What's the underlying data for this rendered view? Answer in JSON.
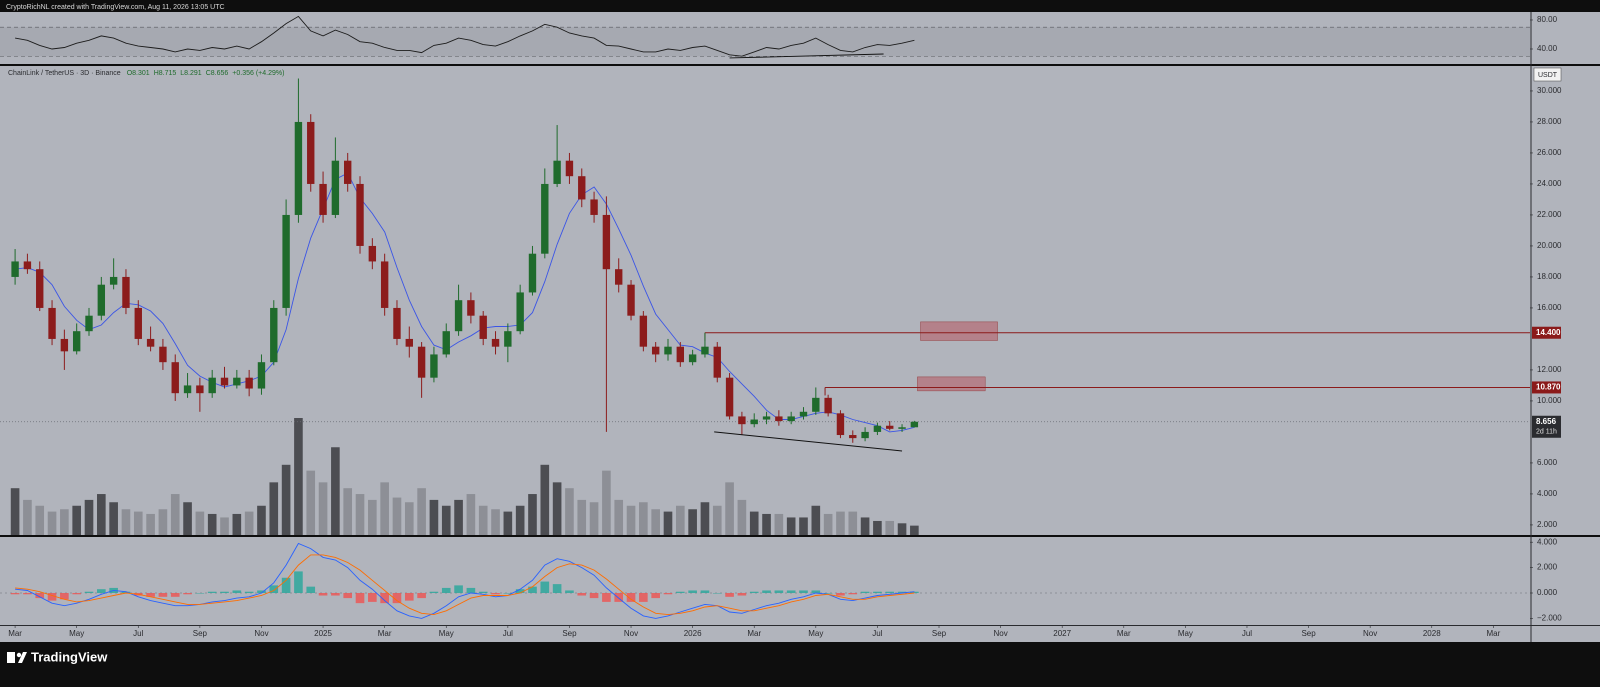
{
  "header": {
    "credit": "CryptoRichNL created with TradingView.com, Aug 11, 2026 13:05 UTC"
  },
  "footer": {
    "brand": "TradingView"
  },
  "chart_data": [
    {
      "type": "line",
      "color": "#1c1c1c",
      "values": [
        55,
        52,
        45,
        40,
        42,
        48,
        52,
        58,
        55,
        48,
        44,
        42,
        40,
        36,
        40,
        38,
        42,
        40,
        44,
        40,
        50,
        62,
        75,
        85,
        65,
        58,
        66,
        60,
        50,
        48,
        42,
        38,
        38,
        35,
        45,
        48,
        55,
        52,
        46,
        44,
        50,
        58,
        65,
        74,
        70,
        62,
        58,
        55,
        45,
        44,
        40,
        36,
        36,
        40,
        38,
        42,
        44,
        38,
        32,
        30,
        36,
        42,
        40,
        45,
        48,
        55,
        46,
        38,
        36,
        42,
        46,
        45,
        48,
        52
      ],
      "ylim": [
        19.3,
        91
      ],
      "yticks": [
        {
          "value": 80,
          "label": "80.00"
        },
        {
          "value": 40,
          "label": "40.00"
        }
      ],
      "band": [
        30,
        70
      ],
      "trendline": {
        "x": [
          23.2,
          28.2
        ],
        "y": [
          27.6,
          33.1
        ]
      }
    },
    {
      "type": "candlestick",
      "title": "ChainLink / TetherUS · 3D · Binance",
      "ohlc_labels": [
        "O8.301",
        "H8.715",
        "L8.291",
        "C8.656"
      ],
      "change_label": "+0.356 (+4.29%)",
      "currency": "USDT",
      "x": [
        0,
        0.4,
        0.8,
        1.2,
        1.6,
        2,
        2.4,
        2.8,
        3.2,
        3.6,
        4,
        4.4,
        4.8,
        5.2,
        5.6,
        6,
        6.4,
        6.8,
        7.2,
        7.6,
        8,
        8.4,
        8.8,
        9.2,
        9.6,
        10,
        10.4,
        10.8,
        11.2,
        11.6,
        12,
        12.4,
        12.8,
        13.2,
        13.6,
        14,
        14.4,
        14.8,
        15.2,
        15.6,
        16,
        16.4,
        16.8,
        17.2,
        17.6,
        18,
        18.4,
        18.8,
        19.2,
        19.6,
        20,
        20.4,
        20.8,
        21.2,
        21.6,
        22,
        22.4,
        22.8,
        23.2,
        23.6,
        24,
        24.4,
        24.8,
        25.2,
        25.6,
        26,
        26.4,
        26.8,
        27.2,
        27.6,
        28,
        28.4,
        28.8,
        29.2
      ],
      "xlim": [
        -0.49,
        49.19
      ],
      "open": [
        18.0,
        19.0,
        18.5,
        16.0,
        14.0,
        13.2,
        14.5,
        15.5,
        17.5,
        18.0,
        16.0,
        14.0,
        13.5,
        12.5,
        10.5,
        11.0,
        10.5,
        11.5,
        11.0,
        11.5,
        10.8,
        12.5,
        16.0,
        22.0,
        28.0,
        24.0,
        22.0,
        25.5,
        24.0,
        20.0,
        19.0,
        16.0,
        14.0,
        13.5,
        11.5,
        13.0,
        14.5,
        16.5,
        15.5,
        14.0,
        13.5,
        14.5,
        17.0,
        19.5,
        24.0,
        25.5,
        24.5,
        23.0,
        22.0,
        18.5,
        17.5,
        15.5,
        13.5,
        13.0,
        13.5,
        12.5,
        13.0,
        13.5,
        11.5,
        9.0,
        8.5,
        8.8,
        9.0,
        8.7,
        9.0,
        9.3,
        10.2,
        9.2,
        7.8,
        7.6,
        8.0,
        8.4,
        8.2,
        8.301
      ],
      "high": [
        19.8,
        19.5,
        19.0,
        16.5,
        14.6,
        15.0,
        16.0,
        18.0,
        19.2,
        18.5,
        16.5,
        14.8,
        14.0,
        13.0,
        11.8,
        11.5,
        12.0,
        12.2,
        12.0,
        12.0,
        13.0,
        16.5,
        23.0,
        30.8,
        28.5,
        24.8,
        27.0,
        26.0,
        24.5,
        20.5,
        19.5,
        16.5,
        14.8,
        13.8,
        13.5,
        15.0,
        17.5,
        17.0,
        15.8,
        14.5,
        15.0,
        17.5,
        20.0,
        25.0,
        27.8,
        26.0,
        25.0,
        23.5,
        23.2,
        19.2,
        17.8,
        15.8,
        13.8,
        14.0,
        13.8,
        13.3,
        14.4,
        13.8,
        11.8,
        9.3,
        9.2,
        9.3,
        9.4,
        9.3,
        9.6,
        10.87,
        10.4,
        9.4,
        8.1,
        8.3,
        8.6,
        8.7,
        8.5,
        8.715
      ],
      "low": [
        17.5,
        18.2,
        15.8,
        13.6,
        12.0,
        13.0,
        14.2,
        15.2,
        17.2,
        15.6,
        13.6,
        13.2,
        12.0,
        10.0,
        10.2,
        9.3,
        10.2,
        10.8,
        10.8,
        10.3,
        10.4,
        12.3,
        15.5,
        21.5,
        23.5,
        21.5,
        21.8,
        23.5,
        19.5,
        18.5,
        15.5,
        13.6,
        12.8,
        10.2,
        11.2,
        12.8,
        14.2,
        15.0,
        13.6,
        13.0,
        12.5,
        14.3,
        16.8,
        19.2,
        23.8,
        24.0,
        22.5,
        21.5,
        8.0,
        17.0,
        15.2,
        13.2,
        12.5,
        12.6,
        12.2,
        12.3,
        12.8,
        11.2,
        8.8,
        7.8,
        8.3,
        8.5,
        8.4,
        8.5,
        8.8,
        9.1,
        9.0,
        7.6,
        7.3,
        7.4,
        7.8,
        8.1,
        8.0,
        8.291
      ],
      "close": [
        19.0,
        18.5,
        16.0,
        14.0,
        13.2,
        14.5,
        15.5,
        17.5,
        18.0,
        16.0,
        14.0,
        13.5,
        12.5,
        10.5,
        11.0,
        10.5,
        11.5,
        11.0,
        11.5,
        10.8,
        12.5,
        16.0,
        22.0,
        28.0,
        24.0,
        22.0,
        25.5,
        24.0,
        20.0,
        19.0,
        16.0,
        14.0,
        13.5,
        11.5,
        13.0,
        14.5,
        16.5,
        15.5,
        14.0,
        13.5,
        14.5,
        17.0,
        19.5,
        24.0,
        25.5,
        24.5,
        23.0,
        22.0,
        18.5,
        17.5,
        15.5,
        13.5,
        13.0,
        13.5,
        12.5,
        13.0,
        13.5,
        11.5,
        9.0,
        8.5,
        8.8,
        9.0,
        8.7,
        9.0,
        9.3,
        10.2,
        9.2,
        7.8,
        7.6,
        8.0,
        8.4,
        8.2,
        8.3,
        8.656
      ],
      "up_color": "#1f6b2c",
      "down_color": "#8c1c1c",
      "ylim": [
        1.35,
        31.61
      ],
      "yticks": [
        {
          "value": 2,
          "label": "2.000"
        },
        {
          "value": 4,
          "label": "4.000"
        },
        {
          "value": 6,
          "label": "6.000"
        },
        {
          "value": 10,
          "label": "10.000"
        },
        {
          "value": 12,
          "label": "12.000"
        },
        {
          "value": 16,
          "label": "16.000"
        },
        {
          "value": 18,
          "label": "18.000"
        },
        {
          "value": 20,
          "label": "20.000"
        },
        {
          "value": 22,
          "label": "22.000"
        },
        {
          "value": 24,
          "label": "24.000"
        },
        {
          "value": 26,
          "label": "26.000"
        },
        {
          "value": 28,
          "label": "28.000"
        },
        {
          "value": 30,
          "label": "30.000"
        }
      ],
      "ma": {
        "color": "#3b55e6",
        "values": [
          18.5,
          18.6,
          18.3,
          17.5,
          16.1,
          15.2,
          14.6,
          14.9,
          15.7,
          16.3,
          16.2,
          15.8,
          15.0,
          13.7,
          12.3,
          11.6,
          11.2,
          10.9,
          11.1,
          11.3,
          11.6,
          12.5,
          14.6,
          17.9,
          20.5,
          22.4,
          24.3,
          24.7,
          23.1,
          22.1,
          20.9,
          18.6,
          16.5,
          14.8,
          13.6,
          13.3,
          13.8,
          14.2,
          14.7,
          14.8,
          14.8,
          14.9,
          15.7,
          17.7,
          20.1,
          22.1,
          23.3,
          23.8,
          22.7,
          21.1,
          19.4,
          17.4,
          15.6,
          14.6,
          13.6,
          13.5,
          13.1,
          12.8,
          11.9,
          11.1,
          10.3,
          9.4,
          8.8,
          8.8,
          9.0,
          9.2,
          9.3,
          9.1,
          8.8,
          8.6,
          8.4,
          8.0,
          8.1,
          8.3
        ]
      },
      "volume": {
        "values": [
          40,
          30,
          25,
          20,
          22,
          25,
          30,
          35,
          28,
          22,
          20,
          18,
          22,
          35,
          28,
          20,
          18,
          15,
          18,
          20,
          25,
          45,
          60,
          100,
          55,
          45,
          75,
          40,
          35,
          30,
          45,
          32,
          28,
          40,
          30,
          25,
          30,
          35,
          25,
          22,
          20,
          25,
          35,
          60,
          45,
          40,
          30,
          28,
          55,
          30,
          25,
          28,
          22,
          20,
          25,
          22,
          28,
          25,
          45,
          30,
          20,
          18,
          18,
          15,
          15,
          25,
          18,
          20,
          20,
          15,
          12,
          12,
          10,
          8
        ],
        "ylim": [
          0,
          100
        ],
        "up_color": "#4c4d52",
        "down_color": "#8d8f96"
      },
      "level_color": "#8b1a1a",
      "levels": [
        {
          "value": 14.4,
          "label": "14.400",
          "start": 22.4
        },
        {
          "value": 10.87,
          "label": "10.870",
          "start": 26.3
        }
      ],
      "zone_color": "#b5707a",
      "zones": [
        {
          "xlim": [
            29.4,
            31.9
          ],
          "ylim": [
            13.9,
            15.1
          ]
        },
        {
          "xlim": [
            29.3,
            31.5
          ],
          "ylim": [
            10.65,
            11.55
          ]
        }
      ],
      "trendline": {
        "x": [
          22.7,
          28.8
        ],
        "y": [
          8.0,
          6.77
        ]
      },
      "last_price": {
        "value": 8.656,
        "label": "8.656"
      },
      "countdown": "2d 11h"
    },
    {
      "type": "macd",
      "macd": {
        "color": "#2962ff",
        "values": [
          0.3,
          0.2,
          -0.3,
          -0.8,
          -1.0,
          -0.8,
          -0.5,
          -0.1,
          0.2,
          0.1,
          -0.3,
          -0.6,
          -0.8,
          -1.0,
          -1.0,
          -0.9,
          -0.7,
          -0.6,
          -0.4,
          -0.3,
          0.0,
          0.8,
          2.2,
          3.9,
          3.5,
          2.8,
          2.6,
          2.0,
          1.0,
          0.3,
          -0.6,
          -1.4,
          -1.8,
          -2.0,
          -1.6,
          -1.0,
          -0.3,
          0.0,
          -0.1,
          -0.3,
          -0.2,
          0.3,
          1.0,
          2.2,
          2.7,
          2.5,
          2.0,
          1.4,
          0.4,
          -0.4,
          -1.2,
          -1.8,
          -2.0,
          -1.8,
          -1.5,
          -1.2,
          -0.9,
          -1.0,
          -1.5,
          -1.6,
          -1.3,
          -1.0,
          -0.8,
          -0.5,
          -0.3,
          0.0,
          -0.1,
          -0.5,
          -0.6,
          -0.4,
          -0.2,
          -0.1,
          0.0,
          0.1
        ]
      },
      "signal": {
        "color": "#ff6d00",
        "values": [
          0.4,
          0.3,
          0.1,
          -0.2,
          -0.5,
          -0.7,
          -0.6,
          -0.4,
          -0.2,
          0.0,
          -0.1,
          -0.3,
          -0.5,
          -0.7,
          -0.9,
          -0.9,
          -0.8,
          -0.7,
          -0.6,
          -0.4,
          -0.2,
          0.2,
          1.0,
          2.2,
          3.0,
          3.0,
          2.8,
          2.4,
          1.8,
          1.0,
          0.2,
          -0.6,
          -1.2,
          -1.6,
          -1.7,
          -1.4,
          -0.9,
          -0.4,
          -0.2,
          -0.2,
          -0.2,
          0.0,
          0.5,
          1.3,
          2.0,
          2.3,
          2.2,
          1.8,
          1.1,
          0.3,
          -0.5,
          -1.1,
          -1.6,
          -1.7,
          -1.6,
          -1.4,
          -1.1,
          -1.0,
          -1.2,
          -1.4,
          -1.4,
          -1.2,
          -1.0,
          -0.7,
          -0.5,
          -0.2,
          -0.1,
          -0.3,
          -0.5,
          -0.5,
          -0.3,
          -0.2,
          -0.1,
          0.0
        ]
      },
      "histogram": {
        "up_color": "#26a69a",
        "down_color": "#ef5350",
        "values": [
          -0.1,
          -0.1,
          -0.4,
          -0.6,
          -0.5,
          -0.1,
          0.1,
          0.3,
          0.4,
          0.1,
          -0.2,
          -0.3,
          -0.3,
          -0.3,
          -0.1,
          0.0,
          0.1,
          0.1,
          0.2,
          0.1,
          0.2,
          0.6,
          1.2,
          1.7,
          0.5,
          -0.2,
          -0.2,
          -0.4,
          -0.8,
          -0.7,
          -0.8,
          -0.8,
          -0.6,
          -0.4,
          0.1,
          0.4,
          0.6,
          0.4,
          0.1,
          -0.1,
          0.0,
          0.3,
          0.5,
          0.9,
          0.7,
          0.2,
          -0.2,
          -0.4,
          -0.7,
          -0.7,
          -0.7,
          -0.7,
          -0.4,
          -0.1,
          0.1,
          0.2,
          0.2,
          0.0,
          -0.3,
          -0.2,
          0.1,
          0.2,
          0.2,
          0.2,
          0.2,
          0.2,
          0.0,
          -0.2,
          -0.1,
          0.1,
          0.1,
          0.1,
          0.1,
          0.1
        ]
      },
      "ylim": [
        -2.52,
        4.41
      ],
      "yticks": [
        {
          "value": 4,
          "label": "4.000"
        },
        {
          "value": 2,
          "label": "2.000"
        },
        {
          "value": 0,
          "label": "0.000"
        },
        {
          "value": -2,
          "label": "−2.000"
        }
      ],
      "xticks": [
        {
          "value": 0,
          "label": "Mar"
        },
        {
          "value": 2,
          "label": "May"
        },
        {
          "value": 4,
          "label": "Jul"
        },
        {
          "value": 6,
          "label": "Sep"
        },
        {
          "value": 8,
          "label": "Nov"
        },
        {
          "value": 10,
          "label": "2025"
        },
        {
          "value": 12,
          "label": "Mar"
        },
        {
          "value": 14,
          "label": "May"
        },
        {
          "value": 16,
          "label": "Jul"
        },
        {
          "value": 18,
          "label": "Sep"
        },
        {
          "value": 20,
          "label": "Nov"
        },
        {
          "value": 22,
          "label": "2026"
        },
        {
          "value": 24,
          "label": "Mar"
        },
        {
          "value": 26,
          "label": "May"
        },
        {
          "value": 28,
          "label": "Jul"
        },
        {
          "value": 30,
          "label": "Sep"
        },
        {
          "value": 32,
          "label": "Nov"
        },
        {
          "value": 34,
          "label": "2027"
        },
        {
          "value": 36,
          "label": "Mar"
        },
        {
          "value": 38,
          "label": "May"
        },
        {
          "value": 40,
          "label": "Jul"
        },
        {
          "value": 42,
          "label": "Sep"
        },
        {
          "value": 44,
          "label": "Nov"
        },
        {
          "value": 46,
          "label": "2028"
        },
        {
          "value": 48,
          "label": "Mar"
        }
      ]
    }
  ]
}
